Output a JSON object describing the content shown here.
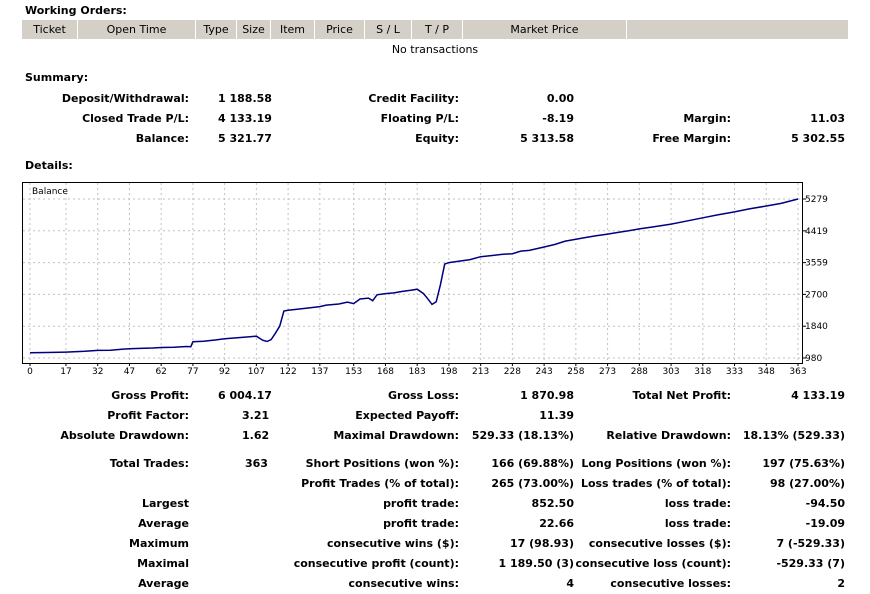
{
  "working_orders": {
    "title": "Working Orders:",
    "columns": [
      "Ticket",
      "Open Time",
      "Type",
      "Size",
      "Item",
      "Price",
      "S / L",
      "T / P",
      "Market Price"
    ],
    "empty_text": "No transactions"
  },
  "summary": {
    "title": "Summary:",
    "deposit_label": "Deposit/Withdrawal:",
    "deposit_value": "1 188.58",
    "credit_label": "Credit Facility:",
    "credit_value": "0.00",
    "closed_label": "Closed Trade P/L:",
    "closed_value": "4 133.19",
    "floating_label": "Floating P/L:",
    "floating_value": "-8.19",
    "margin_label": "Margin:",
    "margin_value": "11.03",
    "balance_label": "Balance:",
    "balance_value": "5 321.77",
    "equity_label": "Equity:",
    "equity_value": "5 313.58",
    "free_margin_label": "Free Margin:",
    "free_margin_value": "5 302.55"
  },
  "details": {
    "title": "Details:",
    "gross_profit_label": "Gross Profit:",
    "gross_profit_value": "6 004.17",
    "gross_loss_label": "Gross Loss:",
    "gross_loss_value": "1 870.98",
    "total_net_label": "Total Net Profit:",
    "total_net_value": "4 133.19",
    "profit_factor_label": "Profit Factor:",
    "profit_factor_value": "3.21",
    "expected_payoff_label": "Expected Payoff:",
    "expected_payoff_value": "11.39",
    "abs_dd_label": "Absolute Drawdown:",
    "abs_dd_value": "1.62",
    "max_dd_label": "Maximal Drawdown:",
    "max_dd_value": "529.33 (18.13%)",
    "rel_dd_label": "Relative Drawdown:",
    "rel_dd_value": "18.13% (529.33)",
    "total_trades_label": "Total Trades:",
    "total_trades_value": "363",
    "short_label": "Short Positions (won %):",
    "short_value": "166 (69.88%)",
    "long_label": "Long Positions (won %):",
    "long_value": "197 (75.63%)",
    "profit_trades_label": "Profit Trades (% of total):",
    "profit_trades_value": "265 (73.00%)",
    "loss_trades_label": "Loss trades (% of total):",
    "loss_trades_value": "98 (27.00%)",
    "largest_label": "Largest",
    "largest_profit_label": "profit trade:",
    "largest_profit_value": "852.50",
    "largest_loss_label": "loss trade:",
    "largest_loss_value": "-94.50",
    "average_label": "Average",
    "average_profit_label": "profit trade:",
    "average_profit_value": "22.66",
    "average_loss_label": "loss trade:",
    "average_loss_value": "-19.09",
    "maximum_label": "Maximum",
    "max_wins_label": "consecutive wins ($):",
    "max_wins_value": "17 (98.93)",
    "max_losses_label": "consecutive losses ($):",
    "max_losses_value": "7 (-529.33)",
    "maximal_label": "Maximal",
    "maximal_profit_label": "consecutive profit (count):",
    "maximal_profit_value": "1 189.50 (3)",
    "maximal_loss_label": "consecutive loss (count):",
    "maximal_loss_value": "-529.33 (7)",
    "average2_label": "Average",
    "avg_wins_label": "consecutive wins:",
    "avg_wins_value": "4",
    "avg_losses_label": "consecutive losses:",
    "avg_losses_value": "2"
  },
  "chart_data": {
    "type": "line",
    "legend": "Balance",
    "line_color": "#000080",
    "x_ticks": [
      "0",
      "17",
      "32",
      "47",
      "62",
      "77",
      "92",
      "107",
      "122",
      "137",
      "153",
      "168",
      "183",
      "198",
      "213",
      "228",
      "243",
      "258",
      "273",
      "288",
      "303",
      "318",
      "333",
      "348",
      "363"
    ],
    "y_ticks": [
      "5279",
      "4419",
      "3559",
      "2700",
      "1840",
      "980"
    ],
    "xlim": [
      0,
      363
    ],
    "ylim": [
      980,
      5279
    ],
    "grid": true,
    "series": [
      {
        "x": [
          0,
          8,
          17,
          26,
          32,
          38,
          44,
          47,
          52,
          58,
          62,
          68,
          74,
          76,
          77,
          82,
          88,
          92,
          98,
          104,
          107,
          110,
          112,
          114,
          116,
          118,
          120,
          122,
          130,
          137,
          140,
          146,
          150,
          153,
          156,
          160,
          162,
          164,
          168,
          172,
          176,
          180,
          183,
          186,
          188,
          190,
          192,
          194,
          196,
          198,
          203,
          208,
          213,
          218,
          223,
          228,
          232,
          236,
          243,
          248,
          253,
          258,
          263,
          268,
          273,
          278,
          283,
          288,
          295,
          303,
          310,
          318,
          325,
          333,
          340,
          348,
          355,
          363
        ],
        "y": [
          1120,
          1130,
          1140,
          1160,
          1185,
          1190,
          1220,
          1230,
          1240,
          1250,
          1265,
          1270,
          1290,
          1285,
          1420,
          1435,
          1470,
          1500,
          1530,
          1555,
          1570,
          1460,
          1425,
          1480,
          1650,
          1840,
          2250,
          2270,
          2320,
          2370,
          2410,
          2440,
          2490,
          2450,
          2575,
          2600,
          2530,
          2690,
          2720,
          2740,
          2780,
          2810,
          2840,
          2720,
          2580,
          2430,
          2500,
          2960,
          3520,
          3560,
          3600,
          3640,
          3720,
          3750,
          3780,
          3800,
          3870,
          3890,
          3980,
          4050,
          4140,
          4190,
          4240,
          4290,
          4330,
          4375,
          4420,
          4470,
          4530,
          4600,
          4680,
          4770,
          4850,
          4930,
          5010,
          5090,
          5160,
          5279
        ]
      }
    ]
  }
}
